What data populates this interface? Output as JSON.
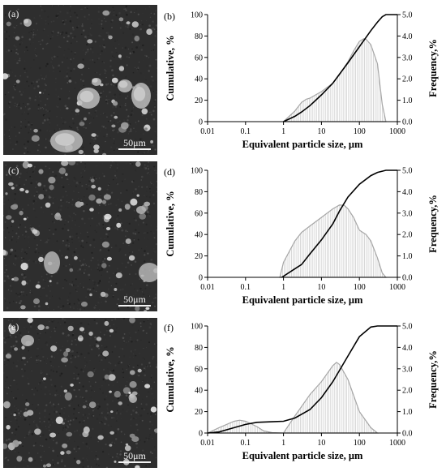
{
  "panels": [
    {
      "sem_label": "(a)",
      "scale_label": "50μm",
      "chart_label": "(b)",
      "chart_data": {
        "type": "line",
        "xlabel": "Equivalent particle size, μm",
        "ylabel": "Cumulative, %",
        "y2label": "Frequency,%",
        "xscale": "log",
        "xlim": [
          0.01,
          1000
        ],
        "ylim": [
          0,
          100
        ],
        "y2lim": [
          0,
          5
        ],
        "xticks": [
          "0.01",
          "0.1",
          "1",
          "10",
          "100",
          "1000"
        ],
        "yticks": [
          "0",
          "20",
          "40",
          "60",
          "80",
          "100"
        ],
        "y2ticks": [
          "0.0",
          "1.0",
          "2.0",
          "3.0",
          "4.0",
          "5.0"
        ],
        "cumulative": {
          "x": [
            1,
            2,
            3,
            5,
            10,
            20,
            50,
            100,
            200,
            300,
            400,
            500,
            600,
            1000
          ],
          "y": [
            0,
            5,
            9,
            15,
            25,
            36,
            55,
            70,
            85,
            93,
            98,
            100,
            100,
            100
          ]
        },
        "frequency": {
          "x": [
            1,
            2,
            3,
            4,
            5,
            7,
            10,
            20,
            30,
            50,
            70,
            100,
            130,
            150,
            200,
            300,
            400,
            500
          ],
          "y": [
            0,
            0.5,
            0.9,
            1.05,
            1.1,
            1.25,
            1.4,
            1.8,
            2.2,
            2.8,
            3.3,
            3.75,
            3.87,
            3.85,
            3.6,
            2.7,
            0.8,
            0
          ]
        }
      }
    },
    {
      "sem_label": "(c)",
      "scale_label": "50μm",
      "chart_label": "(d)",
      "chart_data": {
        "type": "line",
        "xlabel": "Equivalent particle size, μm",
        "ylabel": "Cumulative, %",
        "y2label": "Frequency,%",
        "xscale": "log",
        "xlim": [
          0.01,
          1000
        ],
        "ylim": [
          0,
          100
        ],
        "y2lim": [
          0,
          5
        ],
        "xticks": [
          "0.01",
          "0.1",
          "1",
          "10",
          "100",
          "1000"
        ],
        "yticks": [
          "0",
          "20",
          "40",
          "60",
          "80",
          "100"
        ],
        "y2ticks": [
          "0.0",
          "1.0",
          "2.0",
          "3.0",
          "4.0",
          "5.0"
        ],
        "cumulative": {
          "x": [
            0.9,
            2,
            3,
            5,
            10,
            20,
            30,
            50,
            100,
            200,
            300,
            500,
            1000
          ],
          "y": [
            0,
            8,
            12,
            22,
            35,
            50,
            62,
            75,
            87,
            95,
            98,
            100,
            100
          ]
        },
        "frequency": {
          "x": [
            0.8,
            1,
            2,
            3,
            5,
            10,
            20,
            30,
            40,
            50,
            70,
            100,
            150,
            200,
            300,
            400,
            500
          ],
          "y": [
            0,
            0.7,
            1.7,
            2.1,
            2.4,
            2.8,
            3.2,
            3.38,
            3.36,
            3.2,
            2.8,
            2.2,
            2.0,
            1.7,
            0.9,
            0.2,
            0
          ]
        }
      }
    },
    {
      "sem_label": "(e)",
      "scale_label": "50μm",
      "chart_label": "(f)",
      "chart_data": {
        "type": "line",
        "xlabel": "Equivalent particle size, μm",
        "ylabel": "Cumulative, %",
        "y2label": "Frequency,%",
        "xscale": "log",
        "xlim": [
          0.01,
          1000
        ],
        "ylim": [
          0,
          100
        ],
        "y2lim": [
          0,
          5
        ],
        "xticks": [
          "0.01",
          "0.1",
          "1",
          "10",
          "100",
          "1000"
        ],
        "yticks": [
          "0",
          "20",
          "40",
          "60",
          "80",
          "100"
        ],
        "y2ticks": [
          "0.0",
          "1.0",
          "2.0",
          "3.0",
          "4.0",
          "5.0"
        ],
        "cumulative": {
          "x": [
            0.01,
            0.02,
            0.05,
            0.1,
            0.2,
            0.5,
            1,
            2,
            5,
            10,
            20,
            50,
            100,
            200,
            300,
            1000
          ],
          "y": [
            0,
            1,
            5,
            8,
            10,
            10.5,
            11,
            14,
            22,
            33,
            48,
            72,
            90,
            99,
            100,
            100
          ]
        },
        "frequency": {
          "x": [
            0.01,
            0.02,
            0.05,
            0.07,
            0.1,
            0.2,
            0.3,
            0.5,
            1,
            2,
            5,
            10,
            20,
            25,
            30,
            50,
            100,
            200,
            300
          ],
          "y": [
            0,
            0.25,
            0.55,
            0.6,
            0.55,
            0.3,
            0.1,
            0.02,
            0,
            0.8,
            1.8,
            2.4,
            3.15,
            3.3,
            3.2,
            2.5,
            1.0,
            0.25,
            0
          ]
        }
      }
    }
  ],
  "colors": {
    "cumulative_line": "#000000",
    "frequency_line": "#a6a6a6",
    "frequency_hatch": "#c8c8c8",
    "sem_background": "#2e2e2e"
  }
}
